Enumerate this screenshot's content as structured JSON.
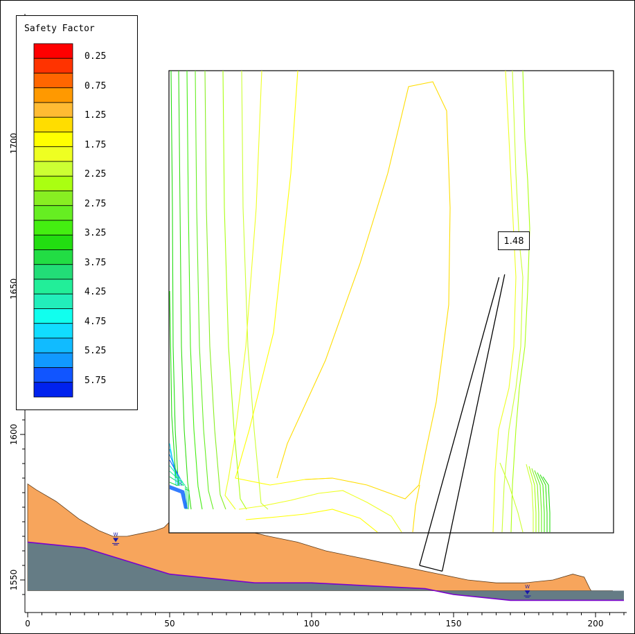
{
  "legend": {
    "title": "Safety Factor",
    "labels": [
      "0.25",
      "0.75",
      "1.25",
      "1.75",
      "2.25",
      "2.75",
      "3.25",
      "3.75",
      "4.25",
      "4.75",
      "5.25",
      "5.75"
    ],
    "colors": [
      "#ff0000",
      "#ff3300",
      "#ff6600",
      "#ff9900",
      "#ffbb33",
      "#ffdd00",
      "#ffff00",
      "#eeff22",
      "#ccff33",
      "#aaff11",
      "#88ee22",
      "#66ee22",
      "#44ee11",
      "#22dd11",
      "#22dd44",
      "#22dd77",
      "#22ee99",
      "#22eebb",
      "#11ffee",
      "#11ddff",
      "#11bbff",
      "#1199ff",
      "#1155ff",
      "#0022ee"
    ]
  },
  "callout": {
    "value": "1.48"
  },
  "chart_data": {
    "type": "contour",
    "title": "",
    "xlabel": "",
    "ylabel": "",
    "xlim": [
      0,
      210
    ],
    "ylim": [
      1545,
      1740
    ],
    "x_ticks": [
      "0",
      "50",
      "100",
      "150",
      "200"
    ],
    "y_ticks": [
      "1550",
      "1600",
      "1650",
      "1700"
    ],
    "grid": false,
    "legend_placement": "top-left",
    "critical_safety_factor": 1.48,
    "ground_surface": [
      [
        0,
        1583
      ],
      [
        3,
        1581
      ],
      [
        10,
        1577
      ],
      [
        18,
        1571
      ],
      [
        25,
        1567
      ],
      [
        30,
        1565
      ],
      [
        35,
        1565
      ],
      [
        40,
        1566
      ],
      [
        45,
        1567
      ],
      [
        48,
        1568
      ],
      [
        50,
        1570
      ],
      [
        55,
        1570
      ],
      [
        65,
        1569
      ],
      [
        72,
        1568
      ],
      [
        85,
        1565
      ],
      [
        95,
        1563
      ],
      [
        105,
        1560
      ],
      [
        115,
        1558
      ],
      [
        125,
        1556
      ],
      [
        135,
        1554
      ],
      [
        145,
        1552
      ],
      [
        155,
        1550
      ],
      [
        165,
        1549
      ],
      [
        175,
        1549
      ],
      [
        185,
        1550
      ],
      [
        192,
        1552
      ],
      [
        196,
        1551
      ],
      [
        198,
        1547
      ],
      [
        200,
        1544
      ],
      [
        206,
        1544
      ]
    ],
    "lower_layer_surface": [
      [
        0,
        1563
      ],
      [
        10,
        1562
      ],
      [
        20,
        1561
      ],
      [
        30,
        1558
      ],
      [
        40,
        1555
      ],
      [
        50,
        1552
      ],
      [
        60,
        1551
      ],
      [
        80,
        1549
      ],
      [
        100,
        1549
      ],
      [
        120,
        1548
      ],
      [
        140,
        1547
      ],
      [
        150,
        1545
      ],
      [
        160,
        1544
      ],
      [
        170,
        1543
      ],
      [
        180,
        1543
      ],
      [
        190,
        1543
      ],
      [
        200,
        1543
      ],
      [
        210,
        1543
      ]
    ],
    "water_markers": [
      [
        31,
        1563
      ],
      [
        176,
        1545
      ]
    ],
    "slip_grid": {
      "x": [
        50,
        207
      ],
      "y": [
        1568,
        1731
      ]
    },
    "critical_surface_lines": [
      [
        [
          138,
          1555
        ],
        [
          166,
          1654
        ]
      ],
      [
        [
          146,
          1553
        ],
        [
          168,
          1655
        ]
      ]
    ]
  },
  "colors": {
    "upper_layer": "#f7a55c",
    "lower_layer": "#657c85",
    "water_table": "#7a00cc",
    "water_marker": "#1a1aa8"
  }
}
